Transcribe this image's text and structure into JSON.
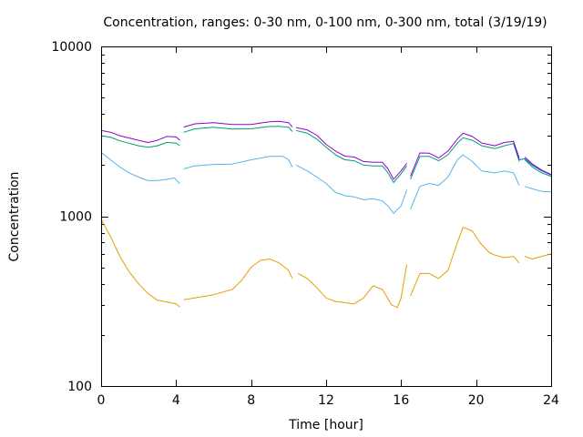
{
  "chart_data": {
    "type": "line",
    "title": "Concentration, ranges: 0-30 nm, 0-100 nm, 0-300 nm, total (3/19/19)",
    "xlabel": "Time [hour]",
    "ylabel": "Concentration",
    "xlim": [
      0,
      24
    ],
    "ylim": [
      100,
      10000
    ],
    "yscale": "log",
    "grid": false,
    "legend": "none",
    "xticks": [
      0,
      4,
      8,
      12,
      16,
      20,
      24
    ],
    "yticks": [
      100,
      1000,
      10000
    ],
    "xtick_labels": [
      "0",
      "4",
      "8",
      "12",
      "16",
      "20",
      "24"
    ],
    "ytick_labels": [
      "100",
      "1000",
      "10000"
    ],
    "series": [
      {
        "color": "#e69f00",
        "segments": [
          [
            [
              0,
              960
            ],
            [
              0.5,
              760
            ],
            [
              1,
              580
            ],
            [
              1.5,
              470
            ],
            [
              2,
              400
            ],
            [
              2.5,
              350
            ],
            [
              3,
              320
            ],
            [
              3.5,
              312
            ],
            [
              4,
              305
            ],
            [
              4.2,
              292
            ]
          ],
          [
            [
              4.4,
              322
            ],
            [
              5,
              330
            ],
            [
              6,
              345
            ],
            [
              7,
              370
            ],
            [
              7.5,
              420
            ],
            [
              8,
              500
            ],
            [
              8.5,
              550
            ],
            [
              9,
              560
            ],
            [
              9.5,
              530
            ],
            [
              10,
              480
            ],
            [
              10.2,
              430
            ]
          ],
          [
            [
              10.5,
              460
            ],
            [
              11,
              430
            ],
            [
              11.5,
              380
            ],
            [
              12,
              330
            ],
            [
              12.5,
              315
            ],
            [
              13,
              310
            ],
            [
              13.5,
              305
            ],
            [
              14,
              330
            ],
            [
              14.5,
              390
            ],
            [
              15,
              370
            ],
            [
              15.5,
              300
            ],
            [
              15.8,
              290
            ],
            [
              16,
              330
            ],
            [
              16.3,
              520
            ]
          ],
          [
            [
              16.5,
              340
            ],
            [
              17,
              460
            ],
            [
              17.5,
              460
            ],
            [
              18,
              430
            ],
            [
              18.5,
              480
            ],
            [
              19,
              700
            ],
            [
              19.3,
              860
            ],
            [
              19.8,
              820
            ],
            [
              20.2,
              700
            ],
            [
              20.7,
              610
            ],
            [
              21,
              590
            ],
            [
              21.5,
              570
            ],
            [
              22,
              580
            ],
            [
              22.3,
              530
            ]
          ],
          [
            [
              22.6,
              580
            ],
            [
              23,
              560
            ],
            [
              23.5,
              580
            ],
            [
              24,
              600
            ]
          ]
        ]
      },
      {
        "color": "#56b4e9",
        "segments": [
          [
            [
              0,
              2380
            ],
            [
              0.5,
              2150
            ],
            [
              1,
              1950
            ],
            [
              1.5,
              1800
            ],
            [
              2,
              1700
            ],
            [
              2.5,
              1620
            ],
            [
              3,
              1620
            ],
            [
              3.5,
              1650
            ],
            [
              3.9,
              1680
            ],
            [
              4.2,
              1560
            ]
          ],
          [
            [
              4.4,
              1900
            ],
            [
              5,
              1980
            ],
            [
              6,
              2020
            ],
            [
              7,
              2030
            ],
            [
              8,
              2150
            ],
            [
              9,
              2250
            ],
            [
              9.7,
              2250
            ],
            [
              10,
              2150
            ],
            [
              10.2,
              1950
            ]
          ],
          [
            [
              10.4,
              2000
            ],
            [
              11,
              1850
            ],
            [
              11.5,
              1700
            ],
            [
              12,
              1560
            ],
            [
              12.5,
              1380
            ],
            [
              13,
              1320
            ],
            [
              13.5,
              1300
            ],
            [
              14,
              1250
            ],
            [
              14.5,
              1270
            ],
            [
              15,
              1230
            ],
            [
              15.3,
              1150
            ],
            [
              15.6,
              1040
            ],
            [
              16,
              1150
            ],
            [
              16.3,
              1430
            ]
          ],
          [
            [
              16.5,
              1100
            ],
            [
              17,
              1500
            ],
            [
              17.5,
              1560
            ],
            [
              18,
              1520
            ],
            [
              18.5,
              1700
            ],
            [
              19,
              2150
            ],
            [
              19.3,
              2300
            ],
            [
              19.8,
              2100
            ],
            [
              20.3,
              1850
            ],
            [
              21,
              1800
            ],
            [
              21.5,
              1850
            ],
            [
              22,
              1800
            ],
            [
              22.3,
              1520
            ]
          ],
          [
            [
              22.6,
              1500
            ],
            [
              23,
              1450
            ],
            [
              23.5,
              1400
            ],
            [
              24,
              1390
            ]
          ]
        ]
      },
      {
        "color": "#009e73",
        "segments": [
          [
            [
              0,
              2980
            ],
            [
              0.5,
              2920
            ],
            [
              1,
              2780
            ],
            [
              2,
              2600
            ],
            [
              2.5,
              2550
            ],
            [
              3,
              2600
            ],
            [
              3.5,
              2720
            ],
            [
              4,
              2700
            ],
            [
              4.2,
              2600
            ]
          ],
          [
            [
              4.4,
              3120
            ],
            [
              5,
              3270
            ],
            [
              6,
              3340
            ],
            [
              7,
              3260
            ],
            [
              8,
              3270
            ],
            [
              8.5,
              3330
            ],
            [
              9,
              3380
            ],
            [
              9.5,
              3380
            ],
            [
              10,
              3350
            ],
            [
              10.2,
              3150
            ]
          ],
          [
            [
              10.4,
              3200
            ],
            [
              11,
              3080
            ],
            [
              11.5,
              2850
            ],
            [
              12,
              2550
            ],
            [
              12.5,
              2300
            ],
            [
              13,
              2150
            ],
            [
              13.5,
              2120
            ],
            [
              14,
              2000
            ],
            [
              14.5,
              1980
            ],
            [
              15,
              1980
            ],
            [
              15.3,
              1800
            ],
            [
              15.6,
              1580
            ],
            [
              16,
              1780
            ],
            [
              16.3,
              1980
            ]
          ],
          [
            [
              16.5,
              1650
            ],
            [
              17,
              2250
            ],
            [
              17.5,
              2250
            ],
            [
              18,
              2120
            ],
            [
              18.5,
              2300
            ],
            [
              19,
              2700
            ],
            [
              19.3,
              2900
            ],
            [
              19.8,
              2800
            ],
            [
              20.3,
              2600
            ],
            [
              21,
              2500
            ],
            [
              21.5,
              2600
            ],
            [
              22,
              2680
            ],
            [
              22.3,
              2100
            ]
          ],
          [
            [
              22.6,
              2150
            ],
            [
              23,
              1950
            ],
            [
              23.5,
              1800
            ],
            [
              24,
              1720
            ]
          ]
        ]
      },
      {
        "color": "#0072b2",
        "segments": [
          [
            [
              22.0,
              2700
            ],
            [
              22.3,
              2150
            ],
            [
              22.6,
              2180
            ],
            [
              23,
              2000
            ],
            [
              23.5,
              1850
            ],
            [
              24,
              1750
            ]
          ]
        ]
      },
      {
        "color": "#9400d3",
        "segments": [
          [
            [
              0,
              3200
            ],
            [
              0.5,
              3120
            ],
            [
              1,
              2980
            ],
            [
              2,
              2800
            ],
            [
              2.5,
              2720
            ],
            [
              3,
              2800
            ],
            [
              3.5,
              2950
            ],
            [
              4,
              2930
            ],
            [
              4.2,
              2800
            ]
          ],
          [
            [
              4.4,
              3350
            ],
            [
              5,
              3500
            ],
            [
              6,
              3560
            ],
            [
              7,
              3470
            ],
            [
              8,
              3470
            ],
            [
              8.5,
              3540
            ],
            [
              9,
              3600
            ],
            [
              9.5,
              3620
            ],
            [
              10,
              3560
            ],
            [
              10.2,
              3350
            ]
          ],
          [
            [
              10.4,
              3330
            ],
            [
              11,
              3220
            ],
            [
              11.5,
              3000
            ],
            [
              12,
              2650
            ],
            [
              12.5,
              2420
            ],
            [
              13,
              2260
            ],
            [
              13.5,
              2230
            ],
            [
              14,
              2100
            ],
            [
              14.5,
              2080
            ],
            [
              15,
              2080
            ],
            [
              15.3,
              1900
            ],
            [
              15.6,
              1650
            ],
            [
              16,
              1850
            ],
            [
              16.3,
              2050
            ]
          ],
          [
            [
              16.5,
              1720
            ],
            [
              17,
              2360
            ],
            [
              17.5,
              2350
            ],
            [
              18,
              2200
            ],
            [
              18.5,
              2420
            ],
            [
              19,
              2850
            ],
            [
              19.3,
              3080
            ],
            [
              19.8,
              2950
            ],
            [
              20.3,
              2700
            ],
            [
              21,
              2600
            ],
            [
              21.5,
              2720
            ],
            [
              22,
              2760
            ],
            [
              22.3,
              2200
            ]
          ],
          [
            [
              22.6,
              2230
            ],
            [
              23,
              2030
            ],
            [
              23.5,
              1870
            ],
            [
              24,
              1760
            ]
          ]
        ]
      }
    ]
  }
}
